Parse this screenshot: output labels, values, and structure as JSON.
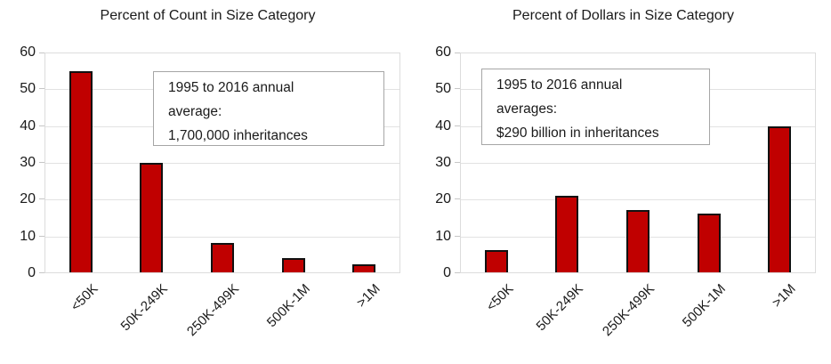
{
  "colors": {
    "bar_fill": "#C00000",
    "bar_border": "#111111",
    "gridline": "#E2E2E2",
    "annotation_border": "#A6A6A6",
    "text": "#1a1a1a"
  },
  "chart_data": [
    {
      "type": "bar",
      "title": "Percent of Count in Size Category",
      "categories": [
        "<50K",
        "50K-249K",
        "250K-499K",
        "500K-1M",
        ">1M"
      ],
      "values": [
        55,
        30,
        8,
        4,
        2.2
      ],
      "xlabel": "",
      "ylabel": "",
      "ylim": [
        0,
        60
      ],
      "yticks": [
        0,
        10,
        20,
        30,
        40,
        50,
        60
      ],
      "grid": true,
      "legend": "none",
      "bar_color": "#C00000",
      "bar_border_color": "#111111",
      "annotation_lines": [
        "1995 to 2016 annual",
        "average:",
        "1,700,000 inheritances"
      ]
    },
    {
      "type": "bar",
      "title": "Percent of Dollars in Size Category",
      "categories": [
        "<50K",
        "50K-249K",
        "250K-499K",
        "500K-1M",
        ">1M"
      ],
      "values": [
        6,
        21,
        17,
        16,
        40
      ],
      "xlabel": "",
      "ylabel": "",
      "ylim": [
        0,
        60
      ],
      "yticks": [
        0,
        10,
        20,
        30,
        40,
        50,
        60
      ],
      "grid": true,
      "legend": "none",
      "bar_color": "#C00000",
      "bar_border_color": "#111111",
      "annotation_lines": [
        "1995 to 2016 annual",
        "averages:",
        "$290 billion in inheritances"
      ]
    }
  ]
}
